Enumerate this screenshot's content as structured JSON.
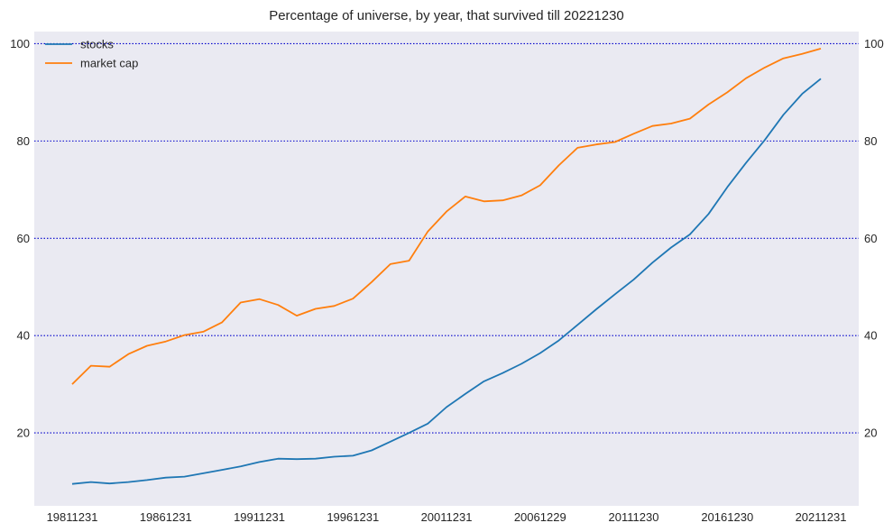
{
  "chart_data": {
    "type": "line",
    "title": "Percentage of universe, by year, that survived till 20221230",
    "xlabel": "",
    "ylabel": "",
    "ylim": [
      5,
      102.5
    ],
    "yticks": [
      20,
      40,
      60,
      80,
      100
    ],
    "grid": "horizontal dotted",
    "legend_position": "top-left",
    "x": [
      "19811231",
      "19821231",
      "19831230",
      "19841231",
      "19851231",
      "19861231",
      "19871231",
      "19881230",
      "19891229",
      "19901231",
      "19911231",
      "19921231",
      "19931231",
      "19941230",
      "19951229",
      "19961231",
      "19971231",
      "19981231",
      "19991231",
      "20001229",
      "20011231",
      "20021231",
      "20031231",
      "20041231",
      "20051230",
      "20061229",
      "20071231",
      "20081231",
      "20091231",
      "20101231",
      "20111230",
      "20121231",
      "20131231",
      "20141231",
      "20151231",
      "20161230",
      "20171229",
      "20181231",
      "20191231",
      "20201231",
      "20211231"
    ],
    "xticklabels": [
      "19811231",
      "19861231",
      "19911231",
      "19961231",
      "20011231",
      "20061229",
      "20111230",
      "20161230",
      "20211231"
    ],
    "xtick_indices": [
      0,
      5,
      10,
      15,
      20,
      25,
      30,
      35,
      40
    ],
    "series": [
      {
        "name": "stocks",
        "color": "#1f77b4",
        "values": [
          9.5,
          9.9,
          9.6,
          9.9,
          10.3,
          10.8,
          11.0,
          11.7,
          12.4,
          13.1,
          14.0,
          14.7,
          14.6,
          14.7,
          15.1,
          15.3,
          16.4,
          18.2,
          20.0,
          21.9,
          25.3,
          28.0,
          30.6,
          32.3,
          34.2,
          36.4,
          39.0,
          42.2,
          45.4,
          48.5,
          51.5,
          55.0,
          58.1,
          60.8,
          65.0,
          70.5,
          75.5,
          80.2,
          85.4,
          89.7,
          92.8
        ]
      },
      {
        "name": "market cap",
        "color": "#ff7f0e",
        "values": [
          30.0,
          33.8,
          33.6,
          36.2,
          37.9,
          38.8,
          40.1,
          40.8,
          42.7,
          46.8,
          47.5,
          46.3,
          44.1,
          45.5,
          46.1,
          47.6,
          51.0,
          54.7,
          55.4,
          61.4,
          65.5,
          68.6,
          67.6,
          67.8,
          68.8,
          70.9,
          75.0,
          78.6,
          79.3,
          79.8,
          81.5,
          83.1,
          83.6,
          84.6,
          87.5,
          90.0,
          92.9,
          95.1,
          97.0,
          97.9,
          99.0
        ]
      }
    ]
  }
}
